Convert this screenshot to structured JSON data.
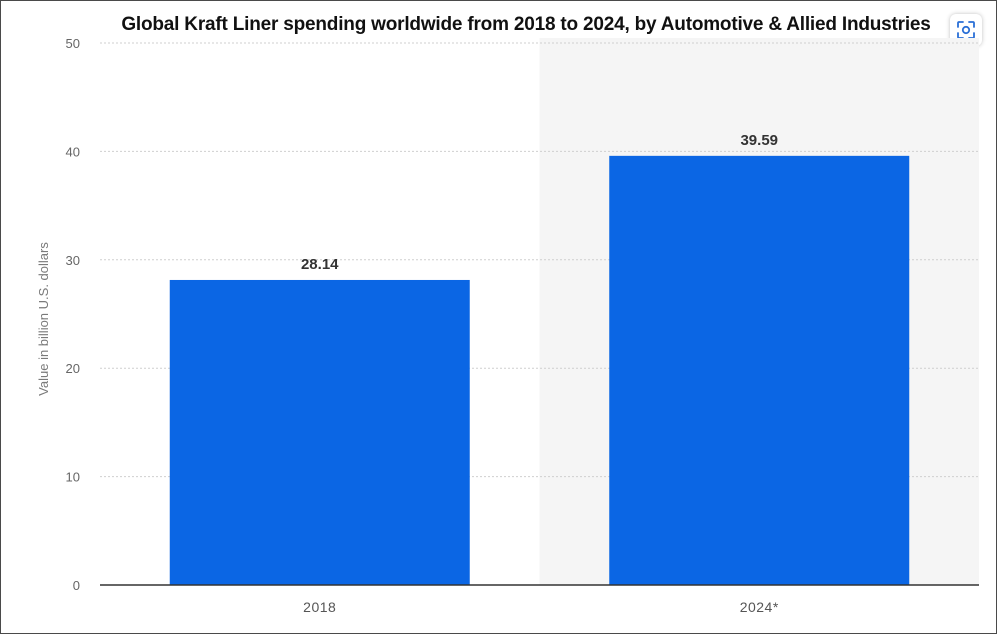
{
  "chart_data": {
    "type": "bar",
    "title": "Global Kraft Liner spending worldwide from 2018 to 2024, by Automotive & Allied Industries",
    "ylabel": "Value in billion U.S. dollars",
    "xlabel": "",
    "categories": [
      "2018",
      "2024*"
    ],
    "values": [
      28.14,
      39.59
    ],
    "data_labels": [
      "28.14",
      "39.59"
    ],
    "ylim": [
      0,
      50
    ],
    "yticks": [
      0,
      10,
      20,
      30,
      40,
      50
    ],
    "grid": true,
    "legend": "none",
    "bar_color": "#0b66e4",
    "forecast_shading_color": "#f5f5f5"
  },
  "toolbar": {
    "icon": "scan-icon"
  }
}
